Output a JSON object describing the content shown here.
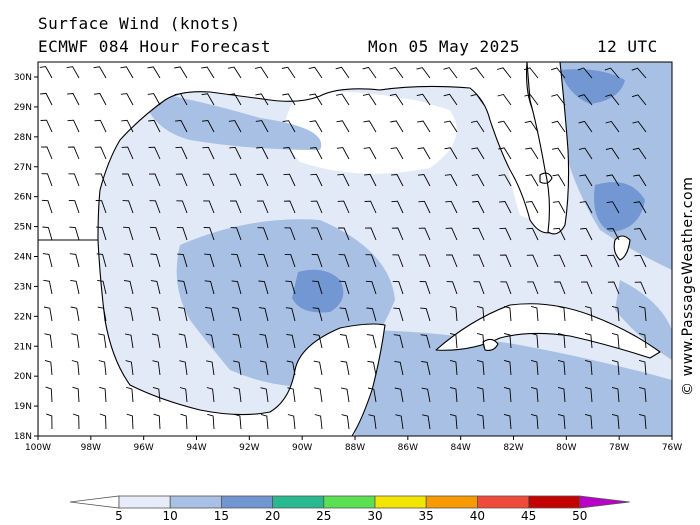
{
  "header": {
    "title": "Surface Wind (knots)",
    "model": "ECMWF 084 Hour Forecast",
    "date": "Mon 05 May 2025",
    "time": "12 UTC"
  },
  "credit": "© www.PassageWeather.com",
  "axes": {
    "lat_labels": [
      "30N",
      "29N",
      "28N",
      "27N",
      "26N",
      "25N",
      "24N",
      "23N",
      "22N",
      "21N",
      "20N",
      "19N",
      "18N"
    ],
    "lon_labels": [
      "100W",
      "98W",
      "96W",
      "94W",
      "92W",
      "90W",
      "88W",
      "86W",
      "84W",
      "82W",
      "80W",
      "78W",
      "76W"
    ]
  },
  "colorbar": {
    "labels": [
      "5",
      "10",
      "15",
      "20",
      "25",
      "30",
      "35",
      "40",
      "45",
      "50"
    ],
    "colors": [
      "#e6ecf8",
      "#a8c0e4",
      "#7096d2",
      "#2ab88e",
      "#5ae050",
      "#f2e600",
      "#f79a00",
      "#ef4a3a",
      "#c40000",
      "#b800c8"
    ],
    "low_color": "#ffffff"
  },
  "map_colors": {
    "calm": "#ffffff",
    "light": "#e2e9f7",
    "moderate": "#a9c0e5",
    "fresh": "#7297d3",
    "coast": "#000000",
    "barb": "#000000"
  }
}
